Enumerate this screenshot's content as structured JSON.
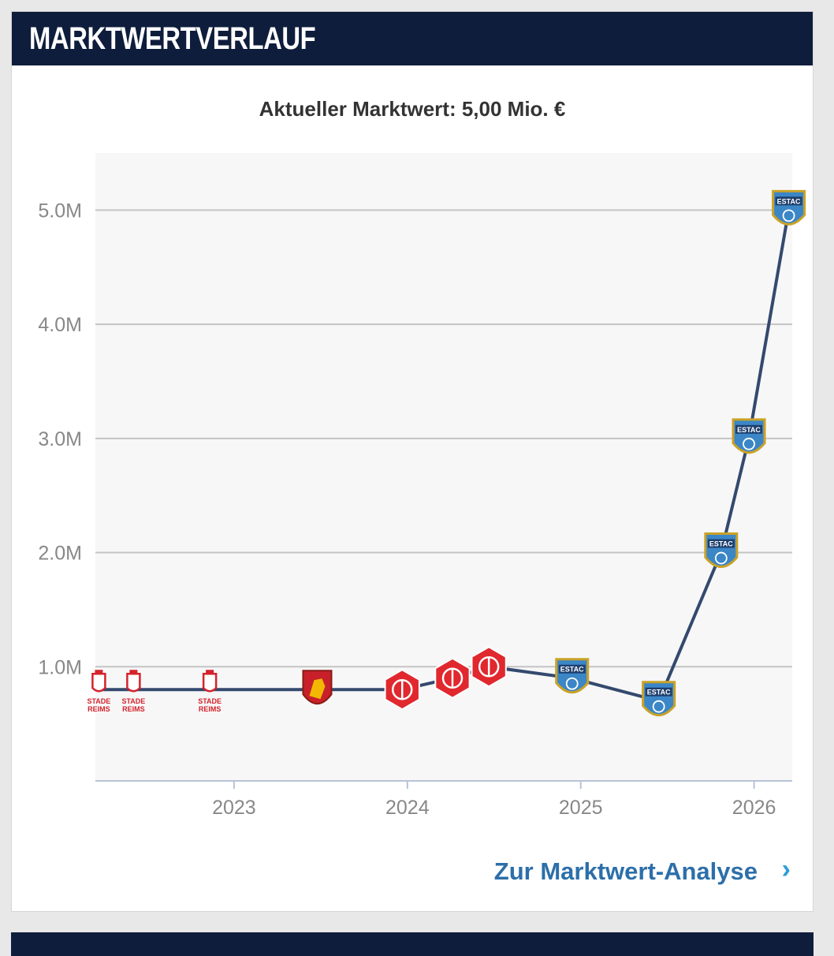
{
  "header": {
    "title": "MARKTWERTVERLAUF"
  },
  "subtitle": "Aktueller Marktwert: 5,00 Mio. €",
  "link": {
    "label": "Zur Marktwert-Analyse",
    "chevron": "chevron-right-icon"
  },
  "colors": {
    "header_bg": "#0f1d3c",
    "line": "#34496e",
    "plot_bg": "#f7f7f8",
    "link": "#2c6fa9",
    "reims_red": "#d4232b",
    "rodez_red": "#c8202a",
    "annecy_red": "#e0282e",
    "troyes_blue": "#3b86c7"
  },
  "chart_data": {
    "type": "line",
    "title": "",
    "xlabel": "",
    "ylabel": "",
    "ylim": [
      0,
      5500000
    ],
    "xlim": [
      2022.2,
      2026.22
    ],
    "y_ticks": [
      {
        "value": 1000000,
        "label": "1.0M"
      },
      {
        "value": 2000000,
        "label": "2.0M"
      },
      {
        "value": 3000000,
        "label": "3.0M"
      },
      {
        "value": 4000000,
        "label": "4.0M"
      },
      {
        "value": 5000000,
        "label": "5.0M"
      }
    ],
    "x_ticks": [
      {
        "value": 2023,
        "label": "2023"
      },
      {
        "value": 2024,
        "label": "2024"
      },
      {
        "value": 2025,
        "label": "2025"
      },
      {
        "value": 2026,
        "label": "2026"
      }
    ],
    "grid": true,
    "series": [
      {
        "points": [
          {
            "x": 2022.22,
            "y": 800000,
            "club": "reims",
            "logo_text": [
              "STADE",
              "REIMS"
            ]
          },
          {
            "x": 2022.42,
            "y": 800000,
            "club": "reims",
            "logo_text": [
              "STADE",
              "REIMS"
            ]
          },
          {
            "x": 2022.86,
            "y": 800000,
            "club": "reims",
            "logo_text": [
              "STADE",
              "REIMS"
            ]
          },
          {
            "x": 2023.48,
            "y": 800000,
            "club": "rodez"
          },
          {
            "x": 2023.97,
            "y": 800000,
            "club": "annecy"
          },
          {
            "x": 2024.26,
            "y": 900000,
            "club": "annecy"
          },
          {
            "x": 2024.47,
            "y": 1000000,
            "club": "annecy"
          },
          {
            "x": 2024.95,
            "y": 900000,
            "club": "troyes",
            "logo_text": [
              "ESTAC"
            ]
          },
          {
            "x": 2025.45,
            "y": 700000,
            "club": "troyes",
            "logo_text": [
              "ESTAC"
            ]
          },
          {
            "x": 2025.81,
            "y": 2000000,
            "club": "troyes",
            "logo_text": [
              "ESTAC"
            ]
          },
          {
            "x": 2025.97,
            "y": 3000000,
            "club": "troyes",
            "logo_text": [
              "ESTAC"
            ]
          },
          {
            "x": 2026.2,
            "y": 5000000,
            "club": "troyes",
            "logo_text": [
              "ESTAC"
            ]
          }
        ]
      }
    ]
  }
}
